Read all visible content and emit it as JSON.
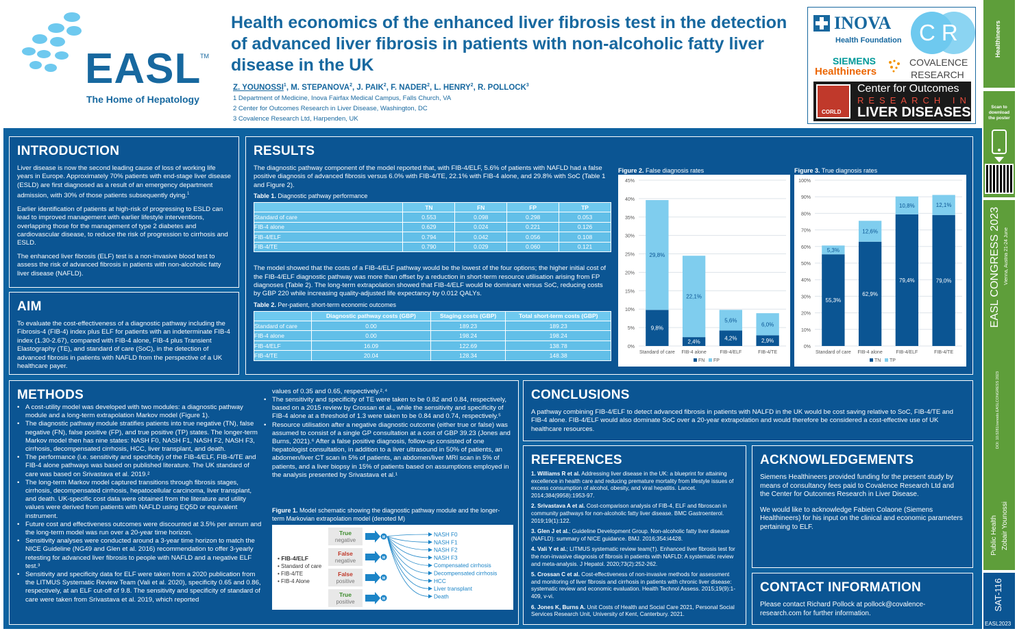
{
  "header": {
    "title": "Health economics of the enhanced liver fibrosis test in the detection of advanced liver fibrosis in patients with non-alcoholic fatty liver disease in the UK",
    "authors": [
      {
        "name": "Z. YOUNOSSI",
        "sup": "1"
      },
      {
        "name": "M. STEPANOVA",
        "sup": "2"
      },
      {
        "name": "J. PAIK",
        "sup": "2"
      },
      {
        "name": "F. NADER",
        "sup": "2"
      },
      {
        "name": "L. HENRY",
        "sup": "2"
      },
      {
        "name": "R. POLLOCK",
        "sup": "3"
      }
    ],
    "affiliations": [
      "1 Department of Medicine, Inova Fairfax Medical Campus, Falls Church, VA",
      "2 Center for Outcomes Research in Liver Disease, Washington, DC",
      "3 Covalence Research Ltd, Harpenden, UK"
    ]
  },
  "easl": {
    "name": "EASL",
    "tm": "TM",
    "tagline": "The Home of Hepatology"
  },
  "sponsors": {
    "inova": "INOVA",
    "inova_sub": "Health Foundation",
    "cr": "CR",
    "covalence": "COVALENCE",
    "research": "RESEARCH",
    "siemens1": "SIEMENS",
    "siemens2": "Healthineers",
    "corld1": "Center for Outcomes",
    "corld2": "RESEARCH IN",
    "corld3": "LIVER DISEASES",
    "corld_badge": "CORLD"
  },
  "sidebar": {
    "scan": "Scan to download the poster",
    "congress": "EASL CONGRESS 2023",
    "place": "Vienna, Austria 21-24 June",
    "doi": "DOI: 10.5281/zenodo.EASLCONGRESS 2023",
    "topic1": "Public Health",
    "topic2": "Zobair Younossi",
    "code": "SAT-116",
    "year": "EASL2023"
  },
  "intro": {
    "title": "INTRODUCTION",
    "p1": "Liver disease is now the second leading cause of loss of working life years in Europe. Approximately 70% patients with end-stage liver disease (ESLD) are first diagnosed as a result of an emergency department admission, with 30% of those patients subsequently dying.",
    "p1sup": "1",
    "p2": "Earlier identification of patients at high-risk of progressing to ESLD can lead to improved management with earlier lifestyle interventions, overlapping those for the management of type 2 diabetes and cardiovascular disease, to reduce the risk of progression to cirrhosis and ESLD.",
    "p3": "The enhanced liver fibrosis (ELF) test is a non-invasive blood test to assess the risk of advanced fibrosis in patients with non-alcoholic fatty liver disease (NAFLD)."
  },
  "aim": {
    "title": "AIM",
    "p": "To evaluate the cost-effectiveness of a diagnostic pathway including the Fibrosis-4 (FIB-4) index plus ELF for patients with an indeterminate FIB-4 index (1.30-2.67), compared with FIB-4 alone, FIB-4 plus Transient Elastography (TE), and standard of care (SoC), in the detection of advanced fibrosis in patients with NAFLD from the perspective of a UK healthcare payer."
  },
  "results": {
    "title": "RESULTS",
    "p1": "The diagnostic pathway component of the model reported that, with FIB-4/ELF, 5.6% of patients with NAFLD had a false positive diagnosis of advanced fibrosis versus 6.0% with FIB-4/TE, 22.1% with FIB-4 alone, and 29.8% with SoC (Table 1 and Figure 2).",
    "t1_label": "Table 1.",
    "t1_cap": "Diagnostic pathway performance",
    "t1_head": [
      "",
      "TN",
      "FN",
      "FP",
      "TP"
    ],
    "t1_rows": [
      [
        "Standard of care",
        "0.553",
        "0.098",
        "0.298",
        "0.053"
      ],
      [
        "FIB-4 alone",
        "0.629",
        "0.024",
        "0.221",
        "0.126"
      ],
      [
        "FIB-4/ELF",
        "0.794",
        "0.042",
        "0.056",
        "0.108"
      ],
      [
        "FIB-4/TE",
        "0.790",
        "0.029",
        "0.060",
        "0.121"
      ]
    ],
    "p2": "The model showed that the costs of a FIB-4/ELF pathway would be the lowest of the four options; the higher initial cost of the FIB-4/ELF diagnostic pathway was more than offset by a reduction in short-term resource utilisation arising from FP diagnoses (Table 2). The long-term extrapolation showed that FIB-4/ELF would be dominant versus SoC, reducing costs by GBP 220 while increasing quality-adjusted life expectancy by 0.012 QALYs.",
    "t2_label": "Table 2.",
    "t2_cap": "Per-patient, short-term economic outcomes",
    "t2_head": [
      "",
      "Diagnostic pathway costs (GBP)",
      "Staging costs (GBP)",
      "Total short-term costs (GBP)"
    ],
    "t2_rows": [
      [
        "Standard of care",
        "0.00",
        "189.23",
        "189.23"
      ],
      [
        "FIB-4 alone",
        "0.00",
        "198.24",
        "198.24"
      ],
      [
        "FIB-4/ELF",
        "16.09",
        "122.69",
        "138.78"
      ],
      [
        "FIB-4/TE",
        "20.04",
        "128.34",
        "148.38"
      ]
    ],
    "f2_label": "Figure 2.",
    "f2_cap": "False diagnosis rates",
    "f3_label": "Figure 3.",
    "f3_cap": "True diagnosis rates"
  },
  "chart_data": [
    {
      "type": "bar",
      "stacked": true,
      "title": "False diagnosis rates",
      "categories": [
        "Standard of care",
        "FIB-4 alone",
        "FIB-4/ELF",
        "FIB-4/TE"
      ],
      "series": [
        {
          "name": "FN",
          "values": [
            9.8,
            2.4,
            4.2,
            2.9
          ],
          "labels": [
            "9,8%",
            "2,4%",
            "4,2%",
            "2,9%"
          ],
          "color": "#0b5593"
        },
        {
          "name": "FP",
          "values": [
            29.8,
            22.1,
            5.6,
            6.0
          ],
          "labels": [
            "29,8%",
            "22,1%",
            "5,6%",
            "6,0%"
          ],
          "color": "#7fcdee"
        }
      ],
      "ylim": [
        0,
        45
      ],
      "yticks": [
        "0%",
        "5%",
        "10%",
        "15%",
        "20%",
        "25%",
        "30%",
        "35%",
        "40%",
        "45%"
      ],
      "legend": "bottom",
      "grid": true
    },
    {
      "type": "bar",
      "stacked": true,
      "title": "True diagnosis rates",
      "categories": [
        "Standard of care",
        "FIB-4 alone",
        "FIB-4/ELF",
        "FIB-4/TE"
      ],
      "series": [
        {
          "name": "TN",
          "values": [
            55.3,
            62.9,
            79.4,
            79.0
          ],
          "labels": [
            "55,3%",
            "62,9%",
            "79,4%",
            "79,0%"
          ],
          "color": "#0b5593"
        },
        {
          "name": "TP",
          "values": [
            5.3,
            12.6,
            10.8,
            12.1
          ],
          "labels": [
            "5,3%",
            "12,6%",
            "10,8%",
            "12,1%"
          ],
          "color": "#7fcdee"
        }
      ],
      "ylim": [
        0,
        100
      ],
      "yticks": [
        "0%",
        "10%",
        "20%",
        "30%",
        "40%",
        "50%",
        "60%",
        "70%",
        "80%",
        "90%",
        "100%"
      ],
      "legend": "bottom",
      "grid": true
    }
  ],
  "methods": {
    "title": "METHODS",
    "col1": [
      "A cost-utility model was developed with two modules: a diagnostic pathway module and a long-term extrapolation Markov model (Figure 1).",
      "The diagnostic pathway module stratifies patients into true negative (TN), false negative (FN), false positive (FP), and true positive (TP) states. The longer-term Markov model then has nine states: NASH F0, NASH F1, NASH F2, NASH F3, cirrhosis, decompensated cirrhosis, HCC, liver transplant, and death.",
      "The performance (i.e. sensitivity and specificity) of the FIB-4/ELF, FIB-4/TE and FIB-4 alone pathways was based on published literature. The UK standard of care was based on Srivastava et al. 2019.²",
      "The long-term Markov model captured transitions through fibrosis stages, cirrhosis, decompensated cirrhosis, hepatocellular carcinoma, liver transplant, and death. UK-specific cost data were obtained from the literature and utility values were derived from patients with NAFLD using EQ5D or equivalent instrument.",
      "Future cost and effectiveness outcomes were discounted at 3.5% per annum and the long-term model was run over a 20-year time horizon.",
      "Sensitivity analyses were conducted around a 3-year time horizon to match the NICE Guideline (NG49 and Glen et al. 2016) recommendation to offer 3-yearly retesting for advanced liver fibrosis to people with NAFLD and a negative ELF test.³",
      "Sensitivity and specificity data for ELF were taken from a 2020 publication from the LITMUS Systematic Review Team (Vali et al. 2020), specificity 0.65 and 0.86, respectively, at an ELF cut-off of 9.8. The sensitivity and specificity of standard of care were taken from Srivastava et al. 2019, which reported"
    ],
    "col2_cont": "values of 0.35 and 0.65, respectively.²˒⁴",
    "col2": [
      "The sensitivity and specificity of TE were taken to be 0.82 and 0.84, respectively, based on a 2015 review by Crossan et al., while the sensitivity and specificity of FIB-4 alone at a threshold of 1.3 were taken to be 0.84 and 0.74, respectively.⁵",
      "Resource utilisation after a negative diagnostic outcome (either true or false) was assumed to consist of a single GP consultation at a cost of GBP 39.23 (Jones and Burns, 2021).⁶ After a false positive diagnosis, follow-up consisted of one hepatologist consultation, in addition to a liver ultrasound in 50% of patients, an abdomen/liver CT scan in 5% of patients, an abdomen/liver MRI scan in 5% of patients, and a liver biopsy in 15% of patients based on assumptions employed in the analysis presented by Srivastava et al.¹"
    ],
    "f1_label": "Figure 1.",
    "f1_cap": "Model schematic showing the diagnostic pathway module and the longer-term Markovian extrapolation model (denoted M)",
    "f1": {
      "arms": [
        "FIB-4/ELF",
        "Standard of care",
        "FIB-4/TE",
        "FIB-4 Alone"
      ],
      "outcomes": [
        {
          "a": "True",
          "b": "negative"
        },
        {
          "a": "False",
          "b": "negative"
        },
        {
          "a": "False",
          "b": "positive"
        },
        {
          "a": "True",
          "b": "positive"
        }
      ],
      "m": "M",
      "states": [
        "NASH F0",
        "NASH F1",
        "NASH F2",
        "NASH F3",
        "Compensated cirrhosis",
        "Decompensated cirrhosis",
        "HCC",
        "Liver transplant",
        "Death"
      ]
    }
  },
  "conclusions": {
    "title": "CONCLUSIONS",
    "p": "A pathway combining FIB-4/ELF to detect advanced fibrosis in patients with NALFD in the UK would be cost saving relative to SoC, FIB-4/TE and FIB-4 alone. FIB-4/ELF would also dominate SoC over a 20-year extrapolation and would therefore be considered a cost-effective use of UK healthcare resources."
  },
  "references": {
    "title": "REFERENCES",
    "items": [
      {
        "a": "1. Williams R et al.",
        "t": " Addressing liver disease in the UK: a blueprint for attaining excellence in health care and reducing premature mortality from lifestyle issues of excess consumption of alcohol, obesity, and viral hepatitis. Lancet. 2014;384(9958):1953-97."
      },
      {
        "a": "2. Srivastava A et al.",
        "t": " Cost-comparison analysis of FIB-4, ELF and fibroscan in community pathways for non-alcoholic fatty liver disease. BMC Gastroenterol. 2019;19(1):122."
      },
      {
        "a": "3. Glen J et al.",
        "t": "; Guideline Development Group. Non-alcoholic fatty liver disease (NAFLD): summary of NICE guidance. BMJ. 2016;354:i4428."
      },
      {
        "a": "4. Vali Y et al.",
        "t": "; LITMUS systematic review team(†). Enhanced liver fibrosis test for the non-invasive diagnosis of fibrosis in patients with NAFLD: A systematic review and meta-analysis. J Hepatol. 2020;73(2):252-262."
      },
      {
        "a": "5. Crossan C et al.",
        "t": " Cost-effectiveness of non-invasive methods for assessment and monitoring of liver fibrosis and cirrhosis in patients with chronic liver disease: systematic review and economic evaluation. Health Technol Assess. 2015;19(9):1-409, v-vi."
      },
      {
        "a": "6. Jones K, Burns A.",
        "t": " Unit Costs of Health and Social Care 2021, Personal Social Services Research Unit, University of Kent, Canterbury. 2021."
      }
    ]
  },
  "ack": {
    "title": "ACKNOWLEDGEMENTS",
    "p1": "Siemens Healthineers provided funding for the present study by means of consultancy fees paid to Covalence Research Ltd and the Center for Outcomes Research in Liver Disease.",
    "p2": "We would like to acknowledge Fabien Colaone (Siemens Healthineers) for his input on the clinical and economic parameters pertaining to ELF."
  },
  "contact": {
    "title": "CONTACT INFORMATION",
    "p": "Please contact Richard Pollock at pollock@covalence-research.com for further information."
  }
}
